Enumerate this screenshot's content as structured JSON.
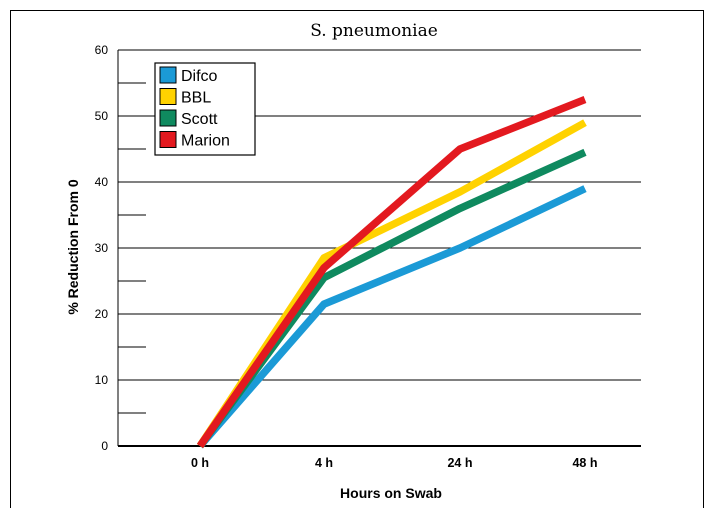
{
  "chart_data": {
    "type": "line",
    "title": "S. pneumoniae",
    "xlabel": "Hours on Swab",
    "ylabel": "% Reduction From 0",
    "categories": [
      "0 h",
      "4 h",
      "24 h",
      "48 h"
    ],
    "ylim": [
      0,
      60
    ],
    "yticks": [
      0,
      10,
      20,
      30,
      40,
      50,
      60
    ],
    "grid": true,
    "legend_position": "top-left",
    "series": [
      {
        "name": "Difco",
        "color": "#1b9ad6",
        "values": [
          0,
          21.5,
          30,
          39
        ]
      },
      {
        "name": "BBL",
        "color": "#ffd200",
        "values": [
          0,
          28.5,
          38.5,
          49
        ]
      },
      {
        "name": "Scott",
        "color": "#0f8a5f",
        "values": [
          0,
          25.5,
          36,
          44.5
        ]
      },
      {
        "name": "Marion",
        "color": "#e3191f",
        "values": [
          0,
          27,
          45,
          52.5
        ]
      }
    ]
  }
}
